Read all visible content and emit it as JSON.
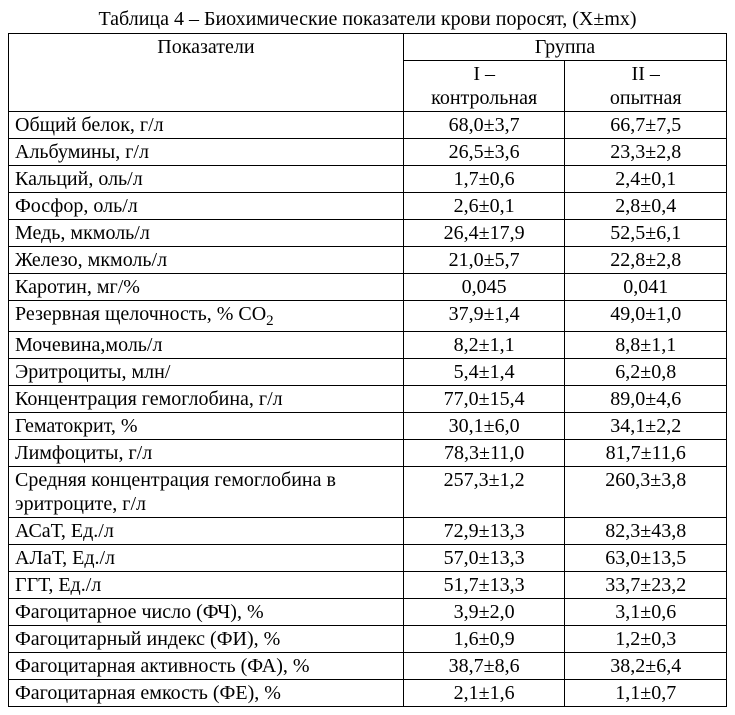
{
  "caption": "Таблица 4 – Биохимические показатели крови поросят, (Х±mх)",
  "header": {
    "indicators": "Показатели",
    "group": "Группа",
    "col1_a": "I –",
    "col1_b": "контрольная",
    "col2_a": "II –",
    "col2_b": "опытная"
  },
  "rows": [
    {
      "label": "Общий белок, г/л",
      "v1": "68,0±3,7",
      "v2": "66,7±7,5"
    },
    {
      "label": "Альбумины, г/л",
      "v1": "26,5±3,6",
      "v2": "23,3±2,8"
    },
    {
      "label": " Кальций,    оль/л",
      "v1": "1,7±0,6",
      "v2": "2,4±0,1"
    },
    {
      "label": "Фосфор,    оль/л",
      "v1": "2,6±0,1",
      "v2": "2,8±0,4"
    },
    {
      "label": "Медь, мкмоль/л",
      "v1": "26,4±17,9",
      "v2": "52,5±6,1"
    },
    {
      "label": "Железо, мкмоль/л",
      "v1": "21,0±5,7",
      "v2": "22,8±2,8"
    },
    {
      "label": "Каротин, мг/%",
      "v1": "0,045",
      "v2": "0,041"
    },
    {
      "label": "Резервная щелочность, % СО",
      "sub": "2",
      "v1": "37,9±1,4",
      "v2": "49,0±1,0"
    },
    {
      "label": "Мочевина,моль/л",
      "v1": "8,2±1,1",
      "v2": "8,8±1,1"
    },
    {
      "label": "Эритроциты, млн/",
      "v1": "5,4±1,4",
      "v2": "6,2±0,8"
    },
    {
      "label": "Концентрация гемоглобина, г/л",
      "v1": "77,0±15,4",
      "v2": "89,0±4,6"
    },
    {
      "label": "Гематокрит, %",
      "v1": "30,1±6,0",
      "v2": "34,1±2,2"
    },
    {
      "label": "Лимфоциты, г/л",
      "v1": "78,3±11,0",
      "v2": "81,7±11,6"
    },
    {
      "label": "Средняя концентрация гемоглобина в эритроците, г/л",
      "v1": "257,3±1,2",
      "v2": "260,3±3,8"
    },
    {
      "label": "АСаТ, Ед./л",
      "v1": "72,9±13,3",
      "v2": "82,3±43,8"
    },
    {
      "label": "АЛаТ, Ед./л",
      "v1": "57,0±13,3",
      "v2": "63,0±13,5"
    },
    {
      "label": "ГГТ,  Ед./л",
      "v1": "51,7±13,3",
      "v2": "33,7±23,2"
    },
    {
      "label": "Фагоцитарное число (ФЧ), %",
      "v1": "3,9±2,0",
      "v2": "3,1±0,6"
    },
    {
      "label": "Фагоцитарный индекс (ФИ), %",
      "v1": "1,6±0,9",
      "v2": "1,2±0,3"
    },
    {
      "label": "Фагоцитарная активность (ФА), %",
      "v1": "38,7±8,6",
      "v2": "38,2±6,4"
    },
    {
      "label": "Фагоцитарная емкость (ФЕ), %",
      "v1": "2,1±1,6",
      "v2": "1,1±0,7"
    }
  ],
  "style": {
    "font_family": "Times New Roman",
    "font_size_pt": 15,
    "text_color": "#000000",
    "background_color": "#ffffff",
    "border_color": "#000000",
    "col_widths_pct": [
      55,
      22.5,
      22.5
    ]
  }
}
